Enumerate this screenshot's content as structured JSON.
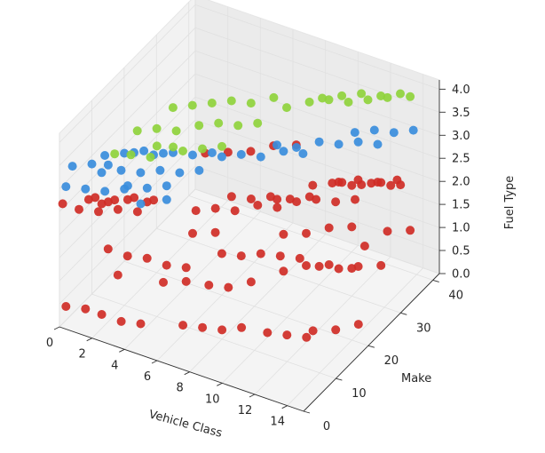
{
  "chart_data": {
    "type": "scatter",
    "projection": "3d",
    "title": "",
    "xlabel": "Vehicle Class",
    "ylabel": "Make",
    "zlabel": "Fuel Type",
    "xlim": [
      0,
      15
    ],
    "ylim": [
      0,
      42
    ],
    "zlim": [
      0,
      4.2
    ],
    "x_ticks": [
      "0",
      "2",
      "4",
      "6",
      "8",
      "10",
      "12",
      "14"
    ],
    "y_ticks": [
      "0",
      "10",
      "20",
      "30",
      "40"
    ],
    "z_ticks": [
      "0.0",
      "0.5",
      "1.0",
      "1.5",
      "2.0",
      "2.5",
      "3.0",
      "3.5",
      "4.0"
    ],
    "grid": true,
    "legend": "none",
    "colors": {
      "red": "#cf2d26",
      "blue": "#3a8ddc",
      "green": "#8fd33c"
    },
    "note": "Each point's color maps to its Fuel Type band in the source figure: red = low z band, blue = mid z band, green = high z band (the estimate below assigns colors by z).",
    "points": [
      [
        0,
        4,
        3.2
      ],
      [
        1,
        5,
        3.3
      ],
      [
        2,
        5,
        3.4
      ],
      [
        2,
        7,
        3.5
      ],
      [
        3,
        7,
        3.6
      ],
      [
        4,
        8,
        3.6
      ],
      [
        4,
        10,
        3.7
      ],
      [
        5,
        10,
        3.8
      ],
      [
        1,
        9,
        3.2
      ],
      [
        2,
        10,
        3.3
      ],
      [
        3,
        11,
        3.4
      ],
      [
        4,
        12,
        3.4
      ],
      [
        5,
        13,
        3.5
      ],
      [
        6,
        14,
        3.6
      ],
      [
        7,
        15,
        3.7
      ],
      [
        2,
        14,
        3.5
      ],
      [
        3,
        15,
        3.6
      ],
      [
        4,
        16,
        3.6
      ],
      [
        5,
        18,
        3.7
      ],
      [
        6,
        19,
        3.8
      ],
      [
        7,
        20,
        3.8
      ],
      [
        8,
        21,
        3.9
      ],
      [
        3,
        20,
        3.7
      ],
      [
        4,
        21,
        3.8
      ],
      [
        5,
        22,
        3.9
      ],
      [
        6,
        23,
        4.0
      ],
      [
        7,
        24,
        4.0
      ],
      [
        8,
        26,
        4.1
      ],
      [
        8,
        30,
        3.6
      ],
      [
        9,
        32,
        3.7
      ],
      [
        10,
        33,
        3.8
      ],
      [
        11,
        34,
        3.8
      ],
      [
        12,
        35,
        3.9
      ],
      [
        13,
        36,
        4.0
      ],
      [
        14,
        38,
        4.0
      ],
      [
        9,
        36,
        3.5
      ],
      [
        10,
        37,
        3.6
      ],
      [
        11,
        38,
        3.7
      ],
      [
        12,
        39,
        3.7
      ],
      [
        13,
        40,
        3.8
      ],
      [
        0,
        2,
        2.9
      ],
      [
        1,
        3,
        2.9
      ],
      [
        2,
        4,
        2.9
      ],
      [
        3,
        5,
        3.0
      ],
      [
        3,
        6,
        3.0
      ],
      [
        4,
        7,
        3.0
      ],
      [
        5,
        8,
        3.1
      ],
      [
        1,
        8,
        2.9
      ],
      [
        2,
        9,
        3.0
      ],
      [
        3,
        10,
        3.0
      ],
      [
        4,
        11,
        3.1
      ],
      [
        5,
        12,
        3.1
      ],
      [
        6,
        13,
        3.2
      ],
      [
        2,
        13,
        3.1
      ],
      [
        3,
        14,
        3.1
      ],
      [
        4,
        15,
        3.2
      ],
      [
        5,
        16,
        3.2
      ],
      [
        6,
        17,
        3.3
      ],
      [
        6,
        20,
        3.0
      ],
      [
        7,
        21,
        3.1
      ],
      [
        8,
        22,
        3.1
      ],
      [
        9,
        24,
        3.2
      ],
      [
        10,
        25,
        3.2
      ],
      [
        8,
        27,
        3.0
      ],
      [
        9,
        28,
        3.0
      ],
      [
        10,
        30,
        3.1
      ],
      [
        11,
        31,
        3.1
      ],
      [
        12,
        32,
        3.2
      ],
      [
        13,
        33,
        3.2
      ],
      [
        11,
        36,
        3.0
      ],
      [
        12,
        37,
        3.1
      ],
      [
        13,
        38,
        3.1
      ],
      [
        14,
        39,
        3.2
      ],
      [
        0,
        1,
        2.6
      ],
      [
        1,
        1,
        2.6
      ],
      [
        2,
        2,
        2.6
      ],
      [
        2,
        3,
        2.7
      ],
      [
        3,
        3,
        2.7
      ],
      [
        4,
        4,
        2.7
      ],
      [
        4,
        5,
        2.8
      ],
      [
        1,
        4,
        2.6
      ],
      [
        2,
        5,
        2.6
      ],
      [
        3,
        6,
        2.7
      ],
      [
        4,
        7,
        2.7
      ],
      [
        5,
        8,
        2.8
      ],
      [
        1,
        6,
        2.5
      ],
      [
        2,
        7,
        2.5
      ],
      [
        3,
        8,
        2.6
      ],
      [
        4,
        9,
        2.6
      ],
      [
        6,
        12,
        2.4
      ],
      [
        7,
        13,
        2.5
      ],
      [
        8,
        14,
        2.5
      ],
      [
        9,
        16,
        2.6
      ],
      [
        10,
        17,
        2.6
      ],
      [
        7,
        18,
        2.4
      ],
      [
        8,
        19,
        2.4
      ],
      [
        9,
        20,
        2.5
      ],
      [
        10,
        21,
        2.5
      ],
      [
        11,
        22,
        2.6
      ],
      [
        9,
        22,
        2.3
      ],
      [
        10,
        23,
        2.3
      ],
      [
        11,
        24,
        2.4
      ],
      [
        12,
        25,
        2.4
      ],
      [
        13,
        26,
        2.5
      ],
      [
        10,
        28,
        2.3
      ],
      [
        11,
        29,
        2.4
      ],
      [
        12,
        30,
        2.4
      ],
      [
        13,
        31,
        2.5
      ],
      [
        14,
        32,
        2.5
      ],
      [
        11,
        32,
        2.2
      ],
      [
        12,
        33,
        2.2
      ],
      [
        13,
        34,
        2.3
      ],
      [
        14,
        35,
        2.3
      ],
      [
        3,
        30,
        2.0
      ],
      [
        4,
        32,
        2.0
      ],
      [
        5,
        34,
        2.0
      ],
      [
        6,
        36,
        2.1
      ],
      [
        7,
        38,
        2.1
      ],
      [
        10,
        36,
        1.8
      ],
      [
        11,
        37,
        1.9
      ],
      [
        12,
        38,
        1.9
      ],
      [
        13,
        39,
        2.0
      ],
      [
        5,
        16,
        1.5
      ],
      [
        6,
        18,
        1.5
      ],
      [
        9,
        24,
        1.4
      ],
      [
        10,
        26,
        1.4
      ],
      [
        11,
        28,
        1.5
      ],
      [
        12,
        30,
        1.5
      ],
      [
        13,
        36,
        1.1
      ],
      [
        14,
        38,
        1.1
      ],
      [
        12,
        34,
        0.8
      ],
      [
        1,
        10,
        1.1
      ],
      [
        2,
        11,
        1.0
      ],
      [
        3,
        12,
        1.0
      ],
      [
        4,
        13,
        0.9
      ],
      [
        5,
        14,
        0.9
      ],
      [
        2,
        8,
        0.8
      ],
      [
        6,
        20,
        0.9
      ],
      [
        7,
        21,
        0.9
      ],
      [
        8,
        22,
        1.0
      ],
      [
        9,
        23,
        1.0
      ],
      [
        10,
        24,
        1.0
      ],
      [
        4,
        12,
        0.6
      ],
      [
        5,
        14,
        0.6
      ],
      [
        6,
        16,
        0.5
      ],
      [
        7,
        17,
        0.5
      ],
      [
        8,
        19,
        0.6
      ],
      [
        9,
        24,
        0.6
      ],
      [
        10,
        26,
        0.7
      ],
      [
        11,
        28,
        0.7
      ],
      [
        12,
        30,
        0.6
      ],
      [
        10,
        30,
        0.4
      ],
      [
        11,
        31,
        0.4
      ],
      [
        12,
        32,
        0.5
      ],
      [
        13,
        34,
        0.5
      ],
      [
        0,
        2,
        0.3
      ],
      [
        1,
        3,
        0.3
      ],
      [
        2,
        3,
        0.3
      ],
      [
        3,
        4,
        0.2
      ],
      [
        4,
        5,
        0.2
      ],
      [
        6,
        8,
        0.2
      ],
      [
        7,
        9,
        0.2
      ],
      [
        8,
        10,
        0.2
      ],
      [
        9,
        11,
        0.3
      ],
      [
        10,
        14,
        0.1
      ],
      [
        11,
        15,
        0.1
      ],
      [
        12,
        16,
        0.1
      ],
      [
        12,
        18,
        0.1
      ],
      [
        13,
        20,
        0.1
      ],
      [
        14,
        22,
        0.2
      ]
    ]
  }
}
